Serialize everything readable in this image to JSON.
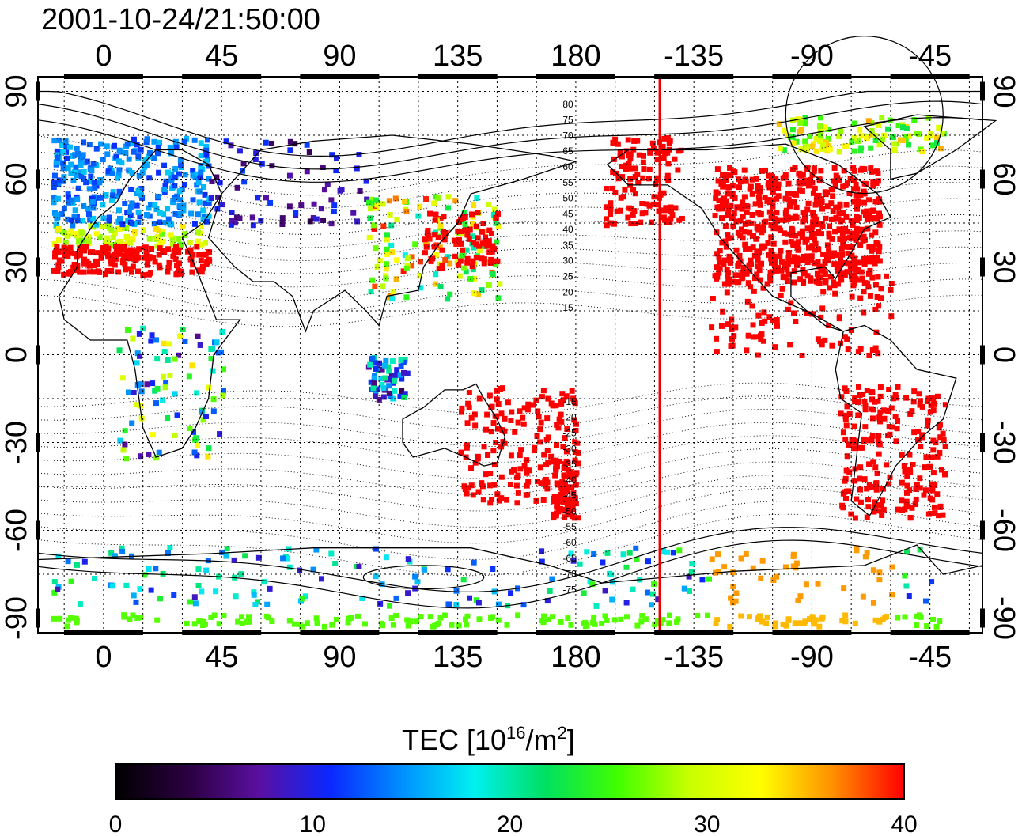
{
  "timestamp": "2001-10-24/21:50:00",
  "map": {
    "lon_range": [
      -25,
      335
    ],
    "lat_range": [
      -95,
      95
    ],
    "top_lon_labels": [
      "0",
      "45",
      "90",
      "135",
      "180",
      "-135",
      "-90",
      "-45"
    ],
    "bottom_lon_labels": [
      "0",
      "45",
      "90",
      "135",
      "180",
      "-135",
      "-90",
      "-45"
    ],
    "lat_labels": [
      "90",
      "60",
      "30",
      "0",
      "-30",
      "-60",
      "-90"
    ],
    "terminator_lon": -148,
    "terminator_color": "#ee0000",
    "contour_labels": [
      "80",
      "75",
      "70",
      "65",
      "60",
      "55",
      "50",
      "45",
      "40",
      "35",
      "30",
      "25",
      "20",
      "15",
      "-15",
      "-20",
      "-25",
      "-30",
      "-35",
      "-40",
      "-45",
      "-50",
      "-55",
      "-60",
      "-65",
      "-70",
      "-75"
    ]
  },
  "colorbar": {
    "title": "TEC  [10",
    "title_exp": "16",
    "title_unit": "/m",
    "title_unit_exp": "2",
    "title_end": "]",
    "min": 0,
    "max": 40,
    "ticks": [
      "0",
      "10",
      "20",
      "30",
      "40"
    ],
    "stops": [
      "#000000",
      "#2a0040",
      "#5a0fa0",
      "#0a28ff",
      "#0090ff",
      "#00f0f0",
      "#00e060",
      "#40ff00",
      "#c8ff00",
      "#ffff00",
      "#ff9000",
      "#ff0000"
    ]
  }
}
